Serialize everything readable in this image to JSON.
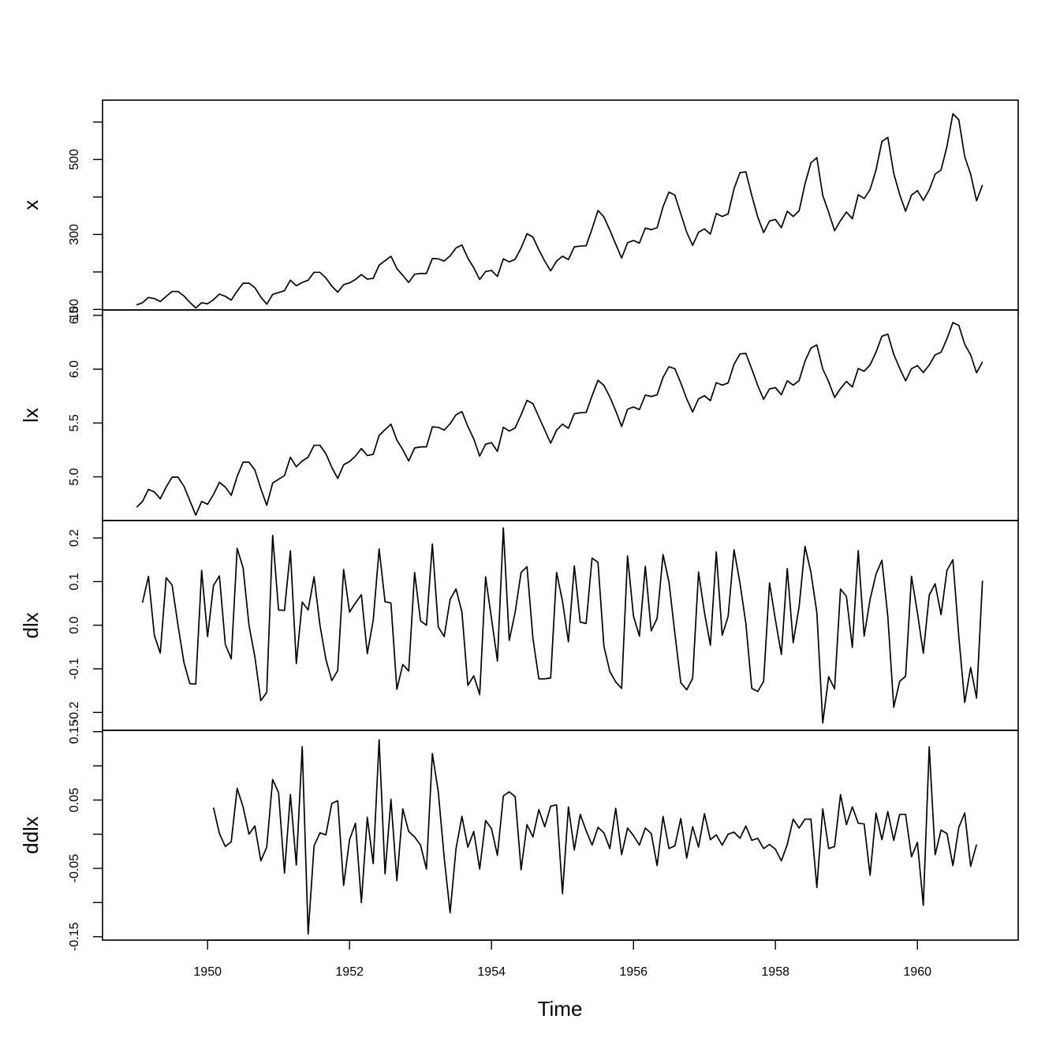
{
  "chart_data": {
    "type": "line",
    "xlabel": "Time",
    "x": {
      "start": 1949.0,
      "frequency": 12,
      "range": [
        1948.52,
        1961.42
      ],
      "ticks": [
        1950,
        1952,
        1954,
        1956,
        1958,
        1960
      ],
      "tick_labels": [
        "1950",
        "1952",
        "1954",
        "1956",
        "1958",
        "1960"
      ]
    },
    "panels": [
      {
        "ylabel": "x",
        "ylim": [
          98.64,
          658.36
        ],
        "yticks": [
          100,
          200,
          300,
          400,
          500,
          600
        ],
        "ytick_labels": [
          "100",
          "",
          "300",
          "",
          "500",
          ""
        ],
        "series": [
          {
            "start": 1949.0,
            "values": [
              112,
              118,
              132,
              129,
              121,
              135,
              148,
              148,
              136,
              119,
              104,
              118,
              115,
              126,
              141,
              135,
              125,
              149,
              170,
              170,
              158,
              133,
              114,
              140,
              145,
              150,
              178,
              163,
              172,
              178,
              199,
              199,
              184,
              162,
              146,
              166,
              171,
              180,
              193,
              181,
              183,
              218,
              230,
              242,
              209,
              191,
              172,
              194,
              196,
              196,
              236,
              235,
              229,
              243,
              264,
              272,
              237,
              211,
              180,
              201,
              204,
              188,
              235,
              227,
              234,
              264,
              302,
              293,
              259,
              229,
              203,
              229,
              242,
              233,
              267,
              269,
              270,
              315,
              364,
              347,
              312,
              274,
              237,
              278,
              284,
              277,
              317,
              313,
              318,
              374,
              413,
              405,
              355,
              306,
              271,
              306,
              315,
              301,
              356,
              348,
              355,
              422,
              465,
              467,
              404,
              347,
              305,
              336,
              340,
              318,
              362,
              348,
              363,
              435,
              491,
              505,
              404,
              359,
              310,
              337,
              360,
              342,
              406,
              396,
              420,
              472,
              548,
              559,
              463,
              407,
              362,
              405,
              417,
              391,
              419,
              461,
              472,
              535,
              622,
              606,
              508,
              461,
              390,
              432
            ]
          }
        ]
      },
      {
        "ylabel": "lx",
        "ylim": [
          4.594,
          6.55
        ],
        "yticks": [
          5.0,
          5.5,
          6.0,
          6.5
        ],
        "ytick_labels": [
          "5.0",
          "5.5",
          "6.0",
          "6.5"
        ],
        "series": [
          {
            "start": 1949.0,
            "values": [
              4.718,
              4.771,
              4.883,
              4.86,
              4.796,
              4.905,
              4.997,
              4.997,
              4.913,
              4.779,
              4.644,
              4.771,
              4.745,
              4.836,
              4.949,
              4.905,
              4.828,
              5.004,
              5.136,
              5.136,
              5.063,
              4.89,
              4.736,
              4.942,
              4.977,
              5.011,
              5.182,
              5.094,
              5.147,
              5.182,
              5.293,
              5.293,
              5.215,
              5.088,
              4.984,
              5.112,
              5.142,
              5.193,
              5.263,
              5.198,
              5.209,
              5.384,
              5.438,
              5.489,
              5.342,
              5.252,
              5.147,
              5.268,
              5.278,
              5.278,
              5.464,
              5.46,
              5.434,
              5.493,
              5.576,
              5.606,
              5.468,
              5.352,
              5.193,
              5.303,
              5.318,
              5.236,
              5.46,
              5.425,
              5.455,
              5.576,
              5.71,
              5.68,
              5.557,
              5.434,
              5.313,
              5.434,
              5.489,
              5.451,
              5.587,
              5.595,
              5.598,
              5.753,
              5.897,
              5.849,
              5.743,
              5.613,
              5.468,
              5.628,
              5.649,
              5.624,
              5.759,
              5.746,
              5.762,
              5.924,
              6.023,
              6.004,
              5.872,
              5.724,
              5.602,
              5.724,
              5.753,
              5.707,
              5.875,
              5.852,
              5.872,
              6.045,
              6.142,
              6.146,
              6.001,
              5.849,
              5.72,
              5.817,
              5.829,
              5.762,
              5.892,
              5.852,
              5.894,
              6.075,
              6.196,
              6.225,
              6.001,
              5.883,
              5.737,
              5.82,
              5.886,
              5.835,
              6.006,
              5.981,
              6.04,
              6.157,
              6.306,
              6.326,
              6.138,
              6.009,
              5.892,
              6.004,
              6.033,
              5.969,
              6.038,
              6.133,
              6.157,
              6.283,
              6.433,
              6.407,
              6.23,
              6.133,
              5.966,
              6.068
            ]
          }
        ]
      },
      {
        "ylabel": "dlx",
        "ylim": [
          -0.241,
          0.24
        ],
        "yticks": [
          -0.2,
          -0.1,
          0.0,
          0.1,
          0.2
        ],
        "ytick_labels": [
          "-0.2",
          "-0.1",
          "0.0",
          "0.1",
          "0.2"
        ],
        "series": [
          {
            "start": 1949.0833,
            "values": [
              0.052,
              0.112,
              -0.023,
              -0.064,
              0.109,
              0.092,
              0.0,
              -0.085,
              -0.134,
              -0.135,
              0.126,
              -0.026,
              0.091,
              0.113,
              -0.044,
              -0.077,
              0.176,
              0.132,
              0.0,
              -0.073,
              -0.173,
              -0.154,
              0.206,
              0.035,
              0.034,
              0.171,
              -0.088,
              0.053,
              0.035,
              0.111,
              0.0,
              -0.078,
              -0.127,
              -0.104,
              0.128,
              0.03,
              0.051,
              0.07,
              -0.065,
              0.011,
              0.175,
              0.054,
              0.051,
              -0.147,
              -0.09,
              -0.105,
              0.121,
              0.01,
              0.0,
              0.186,
              -0.004,
              -0.026,
              0.059,
              0.083,
              0.03,
              -0.138,
              -0.116,
              -0.159,
              0.111,
              0.015,
              -0.082,
              0.223,
              -0.035,
              0.03,
              0.121,
              0.134,
              -0.03,
              -0.123,
              -0.123,
              -0.121,
              0.121,
              0.055,
              -0.038,
              0.136,
              0.007,
              0.004,
              0.154,
              0.144,
              -0.048,
              -0.106,
              -0.13,
              -0.145,
              0.159,
              0.021,
              -0.025,
              0.135,
              -0.013,
              0.016,
              0.162,
              0.099,
              -0.019,
              -0.132,
              -0.148,
              -0.122,
              0.122,
              0.029,
              -0.046,
              0.168,
              -0.023,
              0.02,
              0.173,
              0.097,
              0.004,
              -0.145,
              -0.152,
              -0.129,
              0.097,
              0.012,
              -0.067,
              0.13,
              -0.04,
              0.042,
              0.181,
              0.121,
              0.029,
              -0.224,
              -0.118,
              -0.146,
              0.083,
              0.066,
              -0.051,
              0.171,
              -0.025,
              0.059,
              0.117,
              0.149,
              0.02,
              -0.188,
              -0.129,
              -0.117,
              0.112,
              0.029,
              -0.064,
              0.069,
              0.095,
              0.024,
              0.126,
              0.15,
              -0.026,
              -0.177,
              -0.097,
              -0.167,
              0.102
            ]
          }
        ]
      },
      {
        "ylabel": "ddlx",
        "ylim": [
          -0.155,
          0.152
        ],
        "yticks": [
          -0.15,
          -0.1,
          -0.05,
          0.0,
          0.05,
          0.1,
          0.15
        ],
        "ytick_labels": [
          "-0.15",
          "",
          "-0.05",
          "",
          "0.05",
          "",
          "0.15"
        ],
        "series": [
          {
            "start": 1950.0833,
            "values": [
              0.039,
              0.001,
              -0.018,
              -0.011,
              0.067,
              0.04,
              0.0,
              0.012,
              -0.039,
              -0.019,
              0.08,
              0.061,
              -0.057,
              0.058,
              -0.045,
              0.128,
              -0.146,
              -0.017,
              0.002,
              -0.001,
              0.045,
              0.049,
              -0.075,
              -0.008,
              0.016,
              -0.1,
              0.025,
              -0.043,
              0.138,
              -0.058,
              0.051,
              -0.068,
              0.037,
              0.004,
              -0.004,
              -0.016,
              -0.051,
              0.118,
              0.062,
              -0.034,
              -0.115,
              -0.021,
              0.026,
              -0.019,
              0.004,
              -0.051,
              0.02,
              0.008,
              -0.031,
              0.056,
              0.062,
              0.055,
              -0.052,
              0.014,
              -0.004,
              0.036,
              0.011,
              0.041,
              0.043,
              -0.087,
              0.04,
              -0.023,
              0.029,
              0.005,
              -0.016,
              0.01,
              0.002,
              -0.021,
              0.038,
              -0.03,
              0.009,
              -0.002,
              -0.016,
              0.009,
              0.001,
              -0.046,
              0.026,
              -0.021,
              -0.017,
              0.023,
              -0.035,
              0.011,
              -0.019,
              0.03,
              -0.008,
              -0.001,
              -0.016,
              0.0,
              0.003,
              -0.006,
              0.012,
              -0.009,
              -0.006,
              -0.021,
              -0.015,
              -0.022,
              -0.039,
              -0.015,
              0.022,
              0.009,
              0.022,
              0.022,
              -0.078,
              0.037,
              -0.021,
              -0.018,
              0.058,
              0.014,
              0.04,
              0.016,
              0.015,
              -0.06,
              0.031,
              -0.008,
              0.033,
              -0.009,
              0.029,
              0.029,
              -0.033,
              -0.012,
              -0.104,
              0.128,
              -0.03,
              0.006,
              0.001,
              -0.046,
              0.01,
              0.031,
              -0.047,
              -0.015
            ]
          }
        ]
      }
    ]
  }
}
